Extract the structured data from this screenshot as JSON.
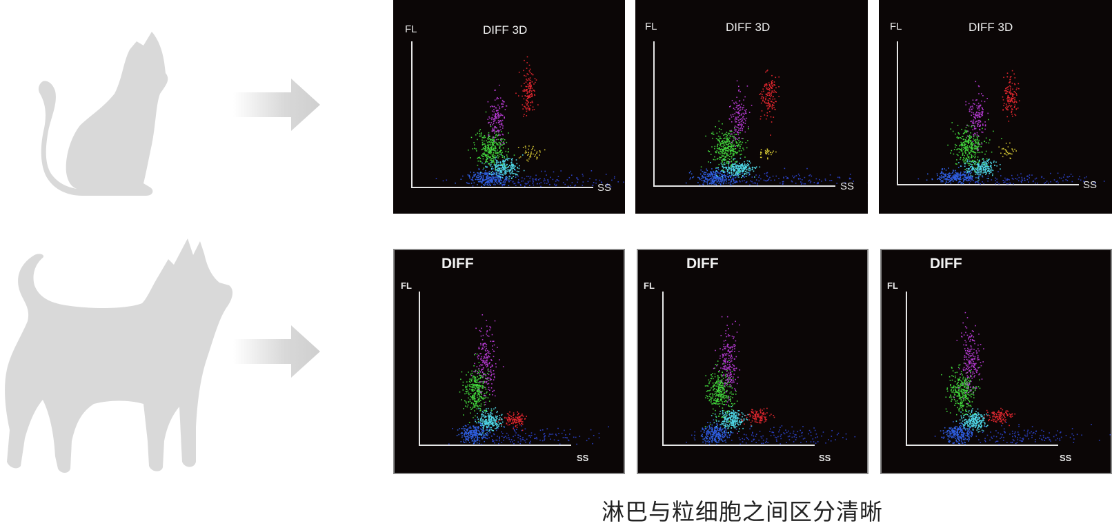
{
  "animals": [
    {
      "id": "cat",
      "arrow": "right-arrow"
    },
    {
      "id": "dog",
      "arrow": "right-arrow"
    }
  ],
  "rows": [
    {
      "title": "DIFF 3D",
      "x_label": "SS",
      "y_label": "FL",
      "panel_count": 3
    },
    {
      "title": "DIFF",
      "x_label": "SS",
      "y_label": "FL",
      "panel_count": 3
    }
  ],
  "caption": "淋巴与粒细胞之间区分清晰",
  "colors": {
    "background": "#ffffff",
    "panel_bg": "#0b0606",
    "axis": "#e6e6e6",
    "silhouette": "#d6d6d6",
    "clusters": {
      "blue": "#2f5fe0",
      "cyan": "#4fd6e6",
      "green": "#42d43c",
      "purple": "#b33ad0",
      "red": "#e0262e",
      "yellow": "#cfc232",
      "scatter_blue": "#2a3fc0"
    }
  }
}
